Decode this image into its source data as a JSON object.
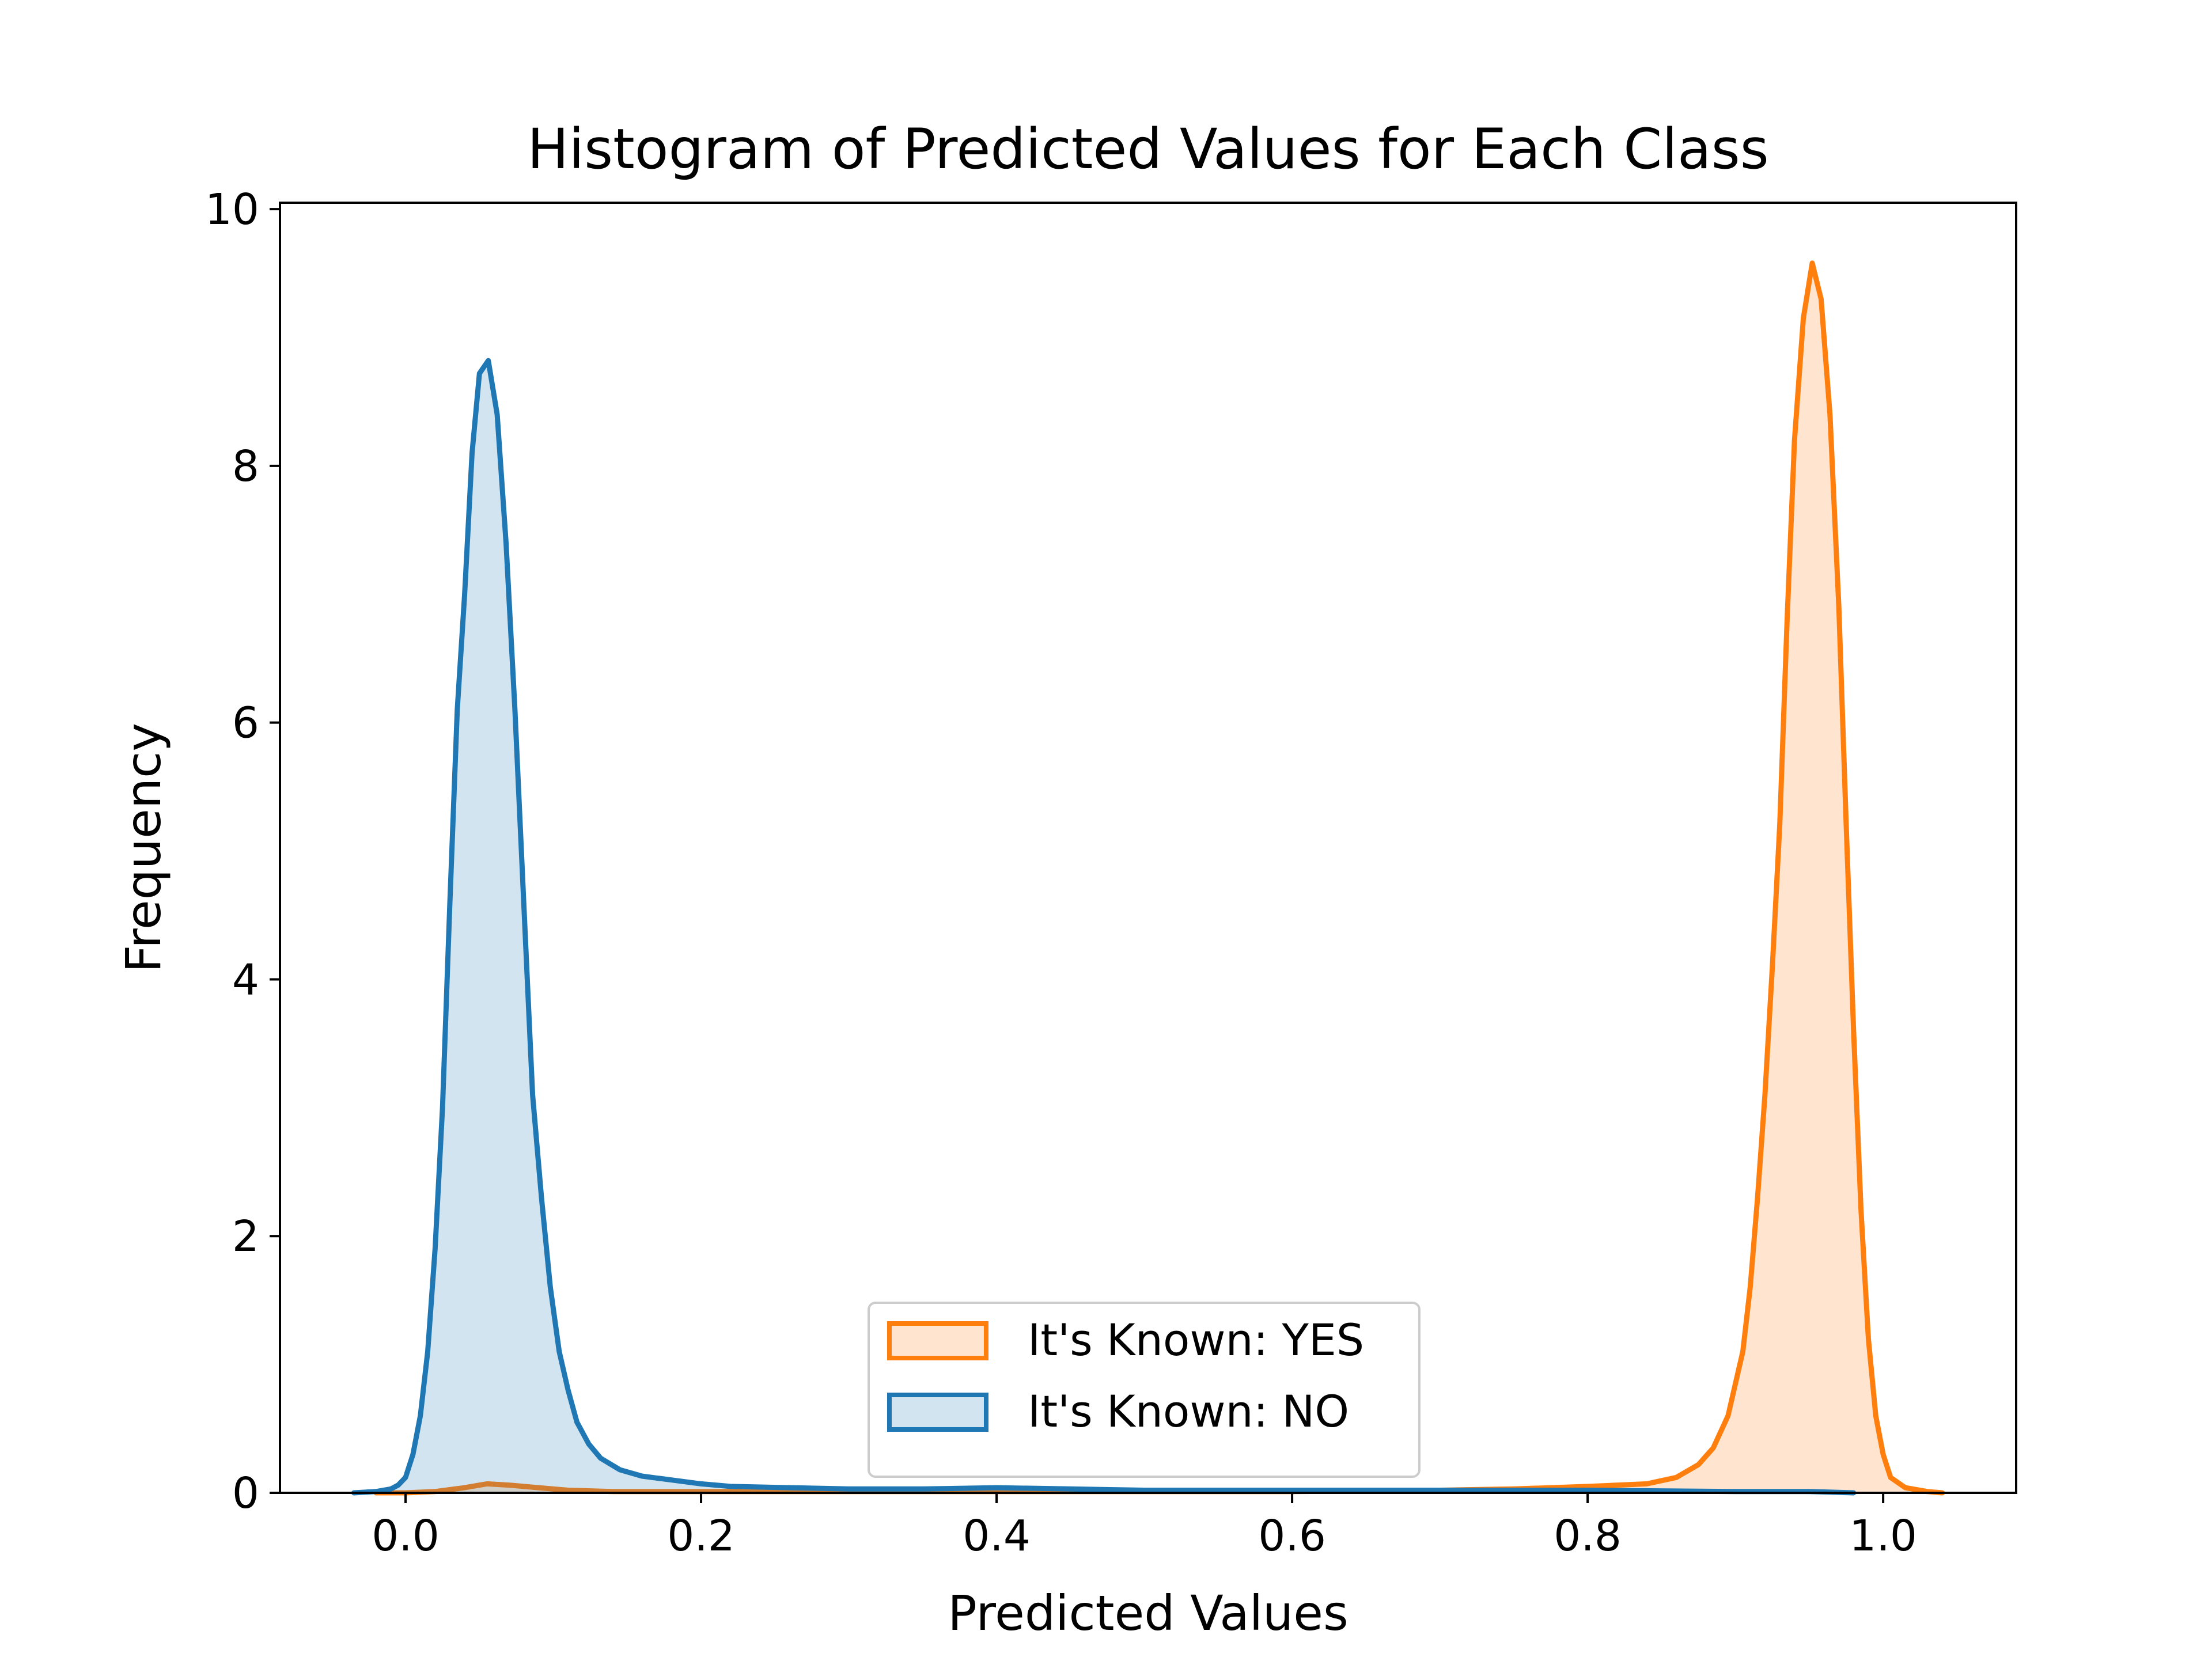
{
  "chart_data": {
    "type": "area",
    "title": "Histogram of Predicted Values for Each Class",
    "xlabel": "Predicted Values",
    "ylabel": "Frequency",
    "xlim": [
      -0.085,
      1.09
    ],
    "ylim": [
      0,
      10.05
    ],
    "xticks": [
      0.0,
      0.2,
      0.4,
      0.6,
      0.8,
      1.0
    ],
    "xtick_labels": [
      "0.0",
      "0.2",
      "0.4",
      "0.6",
      "0.8",
      "1.0"
    ],
    "yticks": [
      0,
      2,
      4,
      6,
      8,
      10
    ],
    "ytick_labels": [
      "0",
      "2",
      "4",
      "6",
      "8",
      "10"
    ],
    "grid": false,
    "legend_position": "lower-center",
    "series": [
      {
        "name": "It's Known: YES",
        "color": "#ff7f0e",
        "fill_opacity": 0.2,
        "points": [
          [
            -0.02,
            0.0
          ],
          [
            0.0,
            0.0
          ],
          [
            0.02,
            0.01
          ],
          [
            0.04,
            0.04
          ],
          [
            0.055,
            0.07
          ],
          [
            0.07,
            0.06
          ],
          [
            0.09,
            0.04
          ],
          [
            0.11,
            0.02
          ],
          [
            0.14,
            0.01
          ],
          [
            0.2,
            0.01
          ],
          [
            0.3,
            0.01
          ],
          [
            0.4,
            0.01
          ],
          [
            0.5,
            0.01
          ],
          [
            0.6,
            0.01
          ],
          [
            0.7,
            0.02
          ],
          [
            0.75,
            0.03
          ],
          [
            0.8,
            0.05
          ],
          [
            0.84,
            0.07
          ],
          [
            0.86,
            0.12
          ],
          [
            0.875,
            0.22
          ],
          [
            0.885,
            0.35
          ],
          [
            0.895,
            0.6
          ],
          [
            0.905,
            1.1
          ],
          [
            0.91,
            1.6
          ],
          [
            0.915,
            2.3
          ],
          [
            0.92,
            3.1
          ],
          [
            0.925,
            4.1
          ],
          [
            0.93,
            5.2
          ],
          [
            0.935,
            6.8
          ],
          [
            0.94,
            8.2
          ],
          [
            0.946,
            9.15
          ],
          [
            0.952,
            9.58
          ],
          [
            0.958,
            9.3
          ],
          [
            0.964,
            8.4
          ],
          [
            0.97,
            6.9
          ],
          [
            0.975,
            5.2
          ],
          [
            0.98,
            3.6
          ],
          [
            0.985,
            2.2
          ],
          [
            0.99,
            1.2
          ],
          [
            0.995,
            0.6
          ],
          [
            1.0,
            0.3
          ],
          [
            1.005,
            0.12
          ],
          [
            1.015,
            0.04
          ],
          [
            1.03,
            0.01
          ],
          [
            1.04,
            0.0
          ]
        ]
      },
      {
        "name": "It's Known: NO",
        "color": "#1f77b4",
        "fill_opacity": 0.2,
        "points": [
          [
            -0.035,
            0.0
          ],
          [
            -0.02,
            0.01
          ],
          [
            -0.01,
            0.03
          ],
          [
            -0.005,
            0.06
          ],
          [
            0.0,
            0.12
          ],
          [
            0.005,
            0.3
          ],
          [
            0.01,
            0.6
          ],
          [
            0.015,
            1.1
          ],
          [
            0.02,
            1.9
          ],
          [
            0.025,
            3.0
          ],
          [
            0.03,
            4.6
          ],
          [
            0.035,
            6.1
          ],
          [
            0.04,
            7.0
          ],
          [
            0.045,
            8.1
          ],
          [
            0.05,
            8.72
          ],
          [
            0.056,
            8.82
          ],
          [
            0.062,
            8.4
          ],
          [
            0.068,
            7.4
          ],
          [
            0.074,
            6.1
          ],
          [
            0.08,
            4.6
          ],
          [
            0.086,
            3.1
          ],
          [
            0.092,
            2.3
          ],
          [
            0.098,
            1.6
          ],
          [
            0.104,
            1.1
          ],
          [
            0.11,
            0.8
          ],
          [
            0.116,
            0.55
          ],
          [
            0.124,
            0.38
          ],
          [
            0.132,
            0.27
          ],
          [
            0.145,
            0.18
          ],
          [
            0.16,
            0.13
          ],
          [
            0.18,
            0.1
          ],
          [
            0.2,
            0.07
          ],
          [
            0.22,
            0.05
          ],
          [
            0.26,
            0.04
          ],
          [
            0.3,
            0.03
          ],
          [
            0.35,
            0.03
          ],
          [
            0.4,
            0.04
          ],
          [
            0.45,
            0.03
          ],
          [
            0.5,
            0.02
          ],
          [
            0.55,
            0.02
          ],
          [
            0.6,
            0.02
          ],
          [
            0.7,
            0.02
          ],
          [
            0.8,
            0.02
          ],
          [
            0.9,
            0.01
          ],
          [
            0.95,
            0.01
          ],
          [
            0.98,
            0.0
          ]
        ]
      }
    ],
    "legend_entries": [
      "It's Known: YES",
      "It's Known: NO"
    ]
  }
}
